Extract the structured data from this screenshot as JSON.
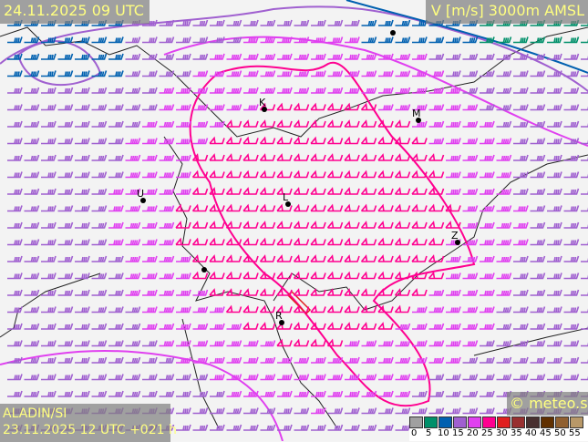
{
  "header": {
    "valid_time": "24.11.2025 09 UTC",
    "parameter": "V [m/s] 3000m AMSL"
  },
  "footer": {
    "model": "ALADIN/SI",
    "run": "23.11.2025 12 UTC +021 h",
    "copyright": "© meteo.si"
  },
  "legend": {
    "ticks": [
      "0",
      "5",
      "10",
      "15",
      "20",
      "25",
      "30",
      "35",
      "40",
      "45",
      "50",
      "55"
    ],
    "colors": [
      "#a0a0a0",
      "#00906a",
      "#0060b0",
      "#a060d0",
      "#e040f0",
      "#ff0090",
      "#e02020",
      "#983030",
      "#483030",
      "#603000",
      "#906030",
      "#b89868"
    ]
  },
  "cities": [
    {
      "label": "K"
    },
    {
      "label": "M"
    },
    {
      "label": "L"
    },
    {
      "label": "Z"
    },
    {
      "label": "U"
    },
    {
      "label": "R"
    }
  ]
}
